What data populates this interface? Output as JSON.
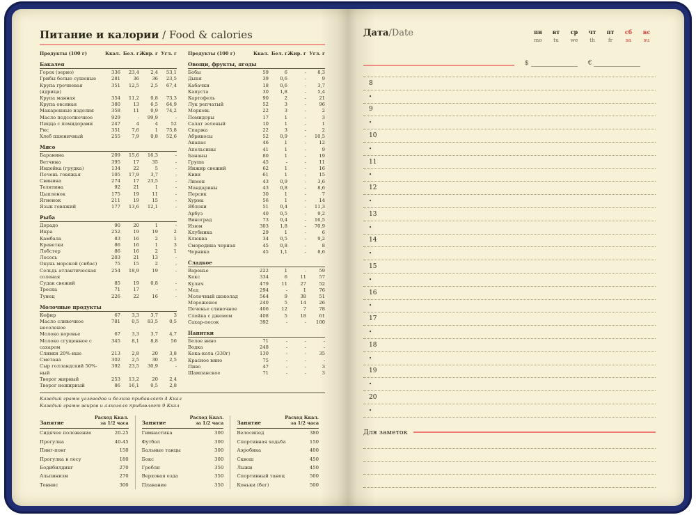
{
  "colors": {
    "cover_navy": "#1f2c6f",
    "page_cream": "#f7f1d8",
    "text_dark": "#33301f",
    "accent_red": "#d93a34",
    "rule_salmon": "#ef8d85"
  },
  "left_page": {
    "title_ru": "Питание и калории",
    "title_en": " / Food & calories",
    "food_header": {
      "product": "Продукты (100 г)",
      "kcal": "Ккал.",
      "protein": "Бел. г",
      "fat": "Жир. г",
      "carbs": "Угл. г"
    },
    "food_columns": [
      {
        "sections": [
          {
            "name": "Бакалея",
            "rows": [
              [
                "Горох (зерно)",
                "336",
                "23,4",
                "2,4",
                "53,1"
              ],
              [
                "Грибы белые сушеные",
                "281",
                "36",
                "36",
                "23,5"
              ],
              [
                "Крупа гречневая (ядрица)",
                "351",
                "12,5",
                "2,5",
                "67,4"
              ],
              [
                "Крупа манная",
                "354",
                "11,2",
                "0,8",
                "73,3"
              ],
              [
                "Крупа овсяная",
                "380",
                "13",
                "6,5",
                "64,9"
              ],
              [
                "Макаронные изделия",
                "358",
                "11",
                "0,9",
                "74,2"
              ],
              [
                "Масло подсолнечное",
                "929",
                "-",
                "99,9",
                "-"
              ],
              [
                "Пицца с помидорами",
                "247",
                "4",
                "4",
                "52"
              ],
              [
                "Рис",
                "351",
                "7,6",
                "1",
                "75,8"
              ],
              [
                "Хлеб пшеничный",
                "255",
                "7,9",
                "0,8",
                "52,6"
              ]
            ]
          },
          {
            "name": "Мясо",
            "rows": [
              [
                "Баранина",
                "209",
                "15,6",
                "16,3",
                "-"
              ],
              [
                "Ветчина",
                "395",
                "17",
                "35",
                "-"
              ],
              [
                "Индейка (грудка)",
                "134",
                "22",
                "5",
                "-"
              ],
              [
                "Печень говяжья",
                "105",
                "17,9",
                "3,7",
                "-"
              ],
              [
                "Свинина",
                "274",
                "17",
                "23,5",
                "-"
              ],
              [
                "Телятина",
                "92",
                "21",
                "1",
                "-"
              ],
              [
                "Цыпленок",
                "175",
                "19",
                "11",
                "-"
              ],
              [
                "Ягненок",
                "211",
                "19",
                "15",
                "-"
              ],
              [
                "Язык говяжий",
                "177",
                "13,6",
                "12,1",
                "-"
              ]
            ]
          },
          {
            "name": "Рыба",
            "rows": [
              [
                "Дорадо",
                "90",
                "20",
                "1",
                "-"
              ],
              [
                "Икра",
                "252",
                "19",
                "19",
                "2"
              ],
              [
                "Камбала",
                "83",
                "16",
                "2",
                "1"
              ],
              [
                "Креветки",
                "86",
                "16",
                "1",
                "3"
              ],
              [
                "Лобстер",
                "86",
                "16",
                "2",
                "1"
              ],
              [
                "Лосось",
                "203",
                "21",
                "13",
                "-"
              ],
              [
                "Окунь морской (сибас)",
                "75",
                "15",
                "2",
                "-"
              ],
              [
                "Сельдь атлантическая соленая",
                "254",
                "18,9",
                "19",
                "-"
              ],
              [
                "Судак свежий",
                "85",
                "19",
                "0,8",
                "-"
              ],
              [
                "Треска",
                "71",
                "17",
                "-",
                "-"
              ],
              [
                "Тунец",
                "226",
                "22",
                "16",
                "-"
              ]
            ]
          },
          {
            "name": "Молочные продукты",
            "rows": [
              [
                "Кефир",
                "67",
                "3,3",
                "3,7",
                "3"
              ],
              [
                "Масло сливочное несоленое",
                "781",
                "0,5",
                "83,5",
                "0,5"
              ],
              [
                "Молоко коровье",
                "67",
                "3,3",
                "3,7",
                "4,7"
              ],
              [
                "Молоко сгущенное с сахаром",
                "345",
                "8,1",
                "8,8",
                "56"
              ],
              [
                "Сливки 20%-ные",
                "213",
                "2,8",
                "20",
                "3,8"
              ],
              [
                "Сметана",
                "302",
                "2,5",
                "30",
                "2,5"
              ],
              [
                "Сыр голландский 50%-ный",
                "392",
                "23,5",
                "30,9",
                "-"
              ],
              [
                "Творог жирный",
                "253",
                "13,2",
                "20",
                "2,4"
              ],
              [
                "Творог нежирный",
                "86",
                "16,1",
                "0,5",
                "2,8"
              ]
            ]
          }
        ]
      },
      {
        "sections": [
          {
            "name": "Овощи, фрукты, ягоды",
            "rows": [
              [
                "Бобы",
                "59",
                "6",
                "-",
                "8,3"
              ],
              [
                "Дыня",
                "39",
                "0,6",
                "-",
                "9"
              ],
              [
                "Кабачки",
                "18",
                "0,6",
                "-",
                "3,7"
              ],
              [
                "Капуста",
                "30",
                "1,8",
                "-",
                "5,4"
              ],
              [
                "Картофель",
                "90",
                "2",
                "-",
                "21"
              ],
              [
                "Лук репчатый",
                "52",
                "3",
                "-",
                "96"
              ],
              [
                "Морковь",
                "22",
                "3",
                "-",
                "2"
              ],
              [
                "Помидоры",
                "17",
                "1",
                "-",
                "3"
              ],
              [
                "Салат зеленый",
                "10",
                "1",
                "-",
                "1"
              ],
              [
                "Спаржа",
                "22",
                "3",
                "-",
                "2"
              ],
              [
                "Абрикосы",
                "52",
                "0,9",
                "-",
                "10,5"
              ],
              [
                "Ананас",
                "46",
                "1",
                "-",
                "12"
              ],
              [
                "Апельсины",
                "41",
                "1",
                "-",
                "9"
              ],
              [
                "Бананы",
                "80",
                "1",
                "-",
                "19"
              ],
              [
                "Груша",
                "45",
                "-",
                "-",
                "11"
              ],
              [
                "Инжир свежий",
                "62",
                "1",
                "-",
                "16"
              ],
              [
                "Киви",
                "61",
                "1",
                "-",
                "15"
              ],
              [
                "Лимон",
                "43",
                "0,9",
                "-",
                "3,6"
              ],
              [
                "Мандарины",
                "43",
                "0,8",
                "-",
                "8,6"
              ],
              [
                "Персик",
                "30",
                "1",
                "-",
                "7"
              ],
              [
                "Хурма",
                "56",
                "1",
                "-",
                "14"
              ],
              [
                "Яблоки",
                "51",
                "0,4",
                "-",
                "11,3"
              ],
              [
                "Арбуз",
                "40",
                "0,5",
                "-",
                "9,2"
              ],
              [
                "Виноград",
                "73",
                "0,4",
                "-",
                "16,5"
              ],
              [
                "Изюм",
                "303",
                "1,8",
                "-",
                "70,9"
              ],
              [
                "Клубника",
                "29",
                "1",
                "-",
                "6"
              ],
              [
                "Клюква",
                "34",
                "0,5",
                "-",
                "9,2"
              ],
              [
                "Смородина черная",
                "45",
                "0,8",
                "-",
                "8"
              ],
              [
                "Черника",
                "45",
                "1,1",
                "-",
                "8,6"
              ]
            ]
          },
          {
            "name": "Сладкое",
            "rows": [
              [
                "Варенье",
                "222",
                "1",
                "-",
                "59"
              ],
              [
                "Кекс",
                "334",
                "6",
                "11",
                "57"
              ],
              [
                "Кулич",
                "479",
                "11",
                "27",
                "52"
              ],
              [
                "Мед",
                "294",
                "-",
                "1",
                "76"
              ],
              [
                "Молочный шоколад",
                "564",
                "9",
                "38",
                "51"
              ],
              [
                "Мороженое",
                "240",
                "5",
                "14",
                "26"
              ],
              [
                "Печенье сливочное",
                "406",
                "12",
                "7",
                "78"
              ],
              [
                "Слойка с джемом",
                "408",
                "5",
                "18",
                "61"
              ],
              [
                "Сахар-песок",
                "392",
                "-",
                "-",
                "100"
              ]
            ]
          },
          {
            "name": "Напитки",
            "rows": [
              [
                "Белое вино",
                "71",
                "-",
                "-",
                "-"
              ],
              [
                "Водка",
                "248",
                "-",
                "-",
                "-"
              ],
              [
                "Кока-кола (330г)",
                "130",
                "-",
                "-",
                "35"
              ],
              [
                "Красное вино",
                "75",
                "-",
                "-",
                "-"
              ],
              [
                "Пиво",
                "47",
                "-",
                "-",
                "3"
              ],
              [
                "Шампанское",
                "71",
                "-",
                "-",
                "3"
              ]
            ]
          }
        ]
      }
    ],
    "footnotes": [
      "Каждый грамм углеводов и белков прибавляет 4 Ккал",
      "Каждый грамм жиров и алкоголя прибавляет 9 Ккал"
    ],
    "activity_header": {
      "name": "Занятие",
      "value_line1": "Расход Ккал.",
      "value_line2": "за 1/2 часа"
    },
    "activity_columns": [
      [
        [
          "Сидячее положение",
          "20-25"
        ],
        [
          "Прогулка",
          "40-45"
        ],
        [
          "Пинг-понг",
          "150"
        ],
        [
          "Прогулка в лесу",
          "180"
        ],
        [
          "Бодибилдинг",
          "270"
        ],
        [
          "Альпинизм",
          "270"
        ],
        [
          "Теннис",
          "300"
        ]
      ],
      [
        [
          "Гимнастика",
          "300"
        ],
        [
          "Футбол",
          "300"
        ],
        [
          "Бальные танцы",
          "300"
        ],
        [
          "Бокс",
          "300"
        ],
        [
          "Гребля",
          "350"
        ],
        [
          "Верховая езда",
          "350"
        ],
        [
          "Плавание",
          "350"
        ]
      ],
      [
        [
          "Велосипед",
          "380"
        ],
        [
          "Спортивная ходьба",
          "150"
        ],
        [
          "Аэробика",
          "400"
        ],
        [
          "Сквош",
          "450"
        ],
        [
          "Лыжи",
          "450"
        ],
        [
          "Спортивный танец",
          "500"
        ],
        [
          "Коньки (бег)",
          "500"
        ]
      ]
    ]
  },
  "right_page": {
    "date_label_ru": "Дата",
    "date_label_en": "/Date",
    "weekdays_ru": [
      "пн",
      "вт",
      "ср",
      "чт",
      "пт",
      "сб",
      "вс"
    ],
    "weekdays_en": [
      "mo",
      "tu",
      "we",
      "th",
      "fr",
      "sa",
      "su"
    ],
    "weekend_start_index": 5,
    "currency_dollar": "$",
    "currency_euro": "€",
    "hours": [
      "8",
      "9",
      "10",
      "11",
      "12",
      "13",
      "14",
      "15",
      "16",
      "17",
      "18",
      "19",
      "20"
    ],
    "bullet": "•",
    "notes_label": "Для заметок",
    "notes_lines_count": 4
  }
}
